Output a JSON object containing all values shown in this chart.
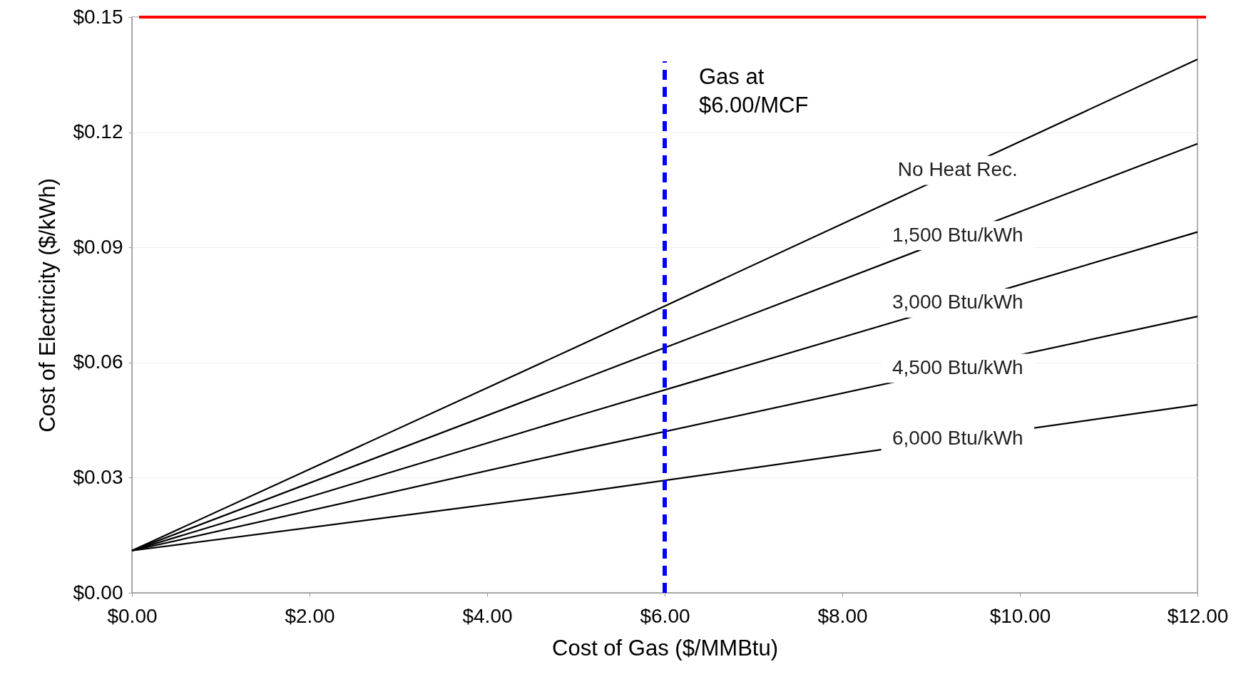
{
  "chart_data": {
    "type": "line",
    "xlabel": "Cost of Gas ($/MMBtu)",
    "ylabel": "Cost of Electricity ($/kWh)",
    "x": [
      0,
      5,
      12
    ],
    "series": [
      {
        "name": "No Heat Rec.",
        "color": "#000000",
        "values": [
          0.011,
          0.064,
          0.139
        ]
      },
      {
        "name": "1,500 Btu/kWh",
        "color": "#000000",
        "values": [
          0.011,
          0.055,
          0.117
        ]
      },
      {
        "name": "3,000 Btu/kWh",
        "color": "#000000",
        "values": [
          0.011,
          0.046,
          0.094
        ]
      },
      {
        "name": "4,500 Btu/kWh",
        "color": "#000000",
        "values": [
          0.011,
          0.037,
          0.072
        ]
      },
      {
        "name": "6,000 Btu/kWh",
        "color": "#000000",
        "values": [
          0.011,
          0.026,
          0.049
        ]
      }
    ],
    "xlim": [
      0,
      12
    ],
    "ylim": [
      0,
      0.15
    ],
    "xticks": [
      {
        "value": 0,
        "label": "$0.00"
      },
      {
        "value": 2,
        "label": "$2.00"
      },
      {
        "value": 4,
        "label": "$4.00"
      },
      {
        "value": 6,
        "label": "$6.00"
      },
      {
        "value": 8,
        "label": "$8.00"
      },
      {
        "value": 10,
        "label": "$10.00"
      },
      {
        "value": 12,
        "label": "$12.00"
      }
    ],
    "yticks": [
      {
        "value": 0,
        "label": "$0.00"
      },
      {
        "value": 0.03,
        "label": "$0.03"
      },
      {
        "value": 0.06,
        "label": "$0.06"
      },
      {
        "value": 0.09,
        "label": "$0.09"
      },
      {
        "value": 0.12,
        "label": "$0.12"
      },
      {
        "value": 0.15,
        "label": "$0.15"
      }
    ],
    "ref_lines": [
      {
        "axis": "y",
        "value": 0.15,
        "color": "#ff0000",
        "line_style": "solid"
      },
      {
        "axis": "x",
        "value": 6,
        "label": "Gas at\n$6.00/MCF",
        "color": "#0000ff",
        "line_style": "dashed"
      }
    ],
    "grid": "y",
    "marker": "none",
    "line_style": "solid"
  }
}
